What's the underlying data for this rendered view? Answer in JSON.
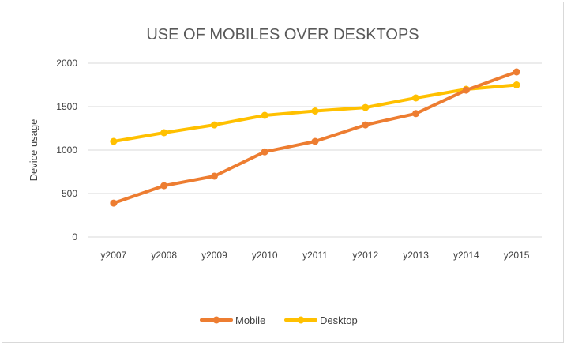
{
  "chart_data": {
    "type": "line",
    "title": "USE OF MOBILES OVER DESKTOPS",
    "xlabel": "",
    "ylabel": "Device usage",
    "categories": [
      "y2007",
      "y2008",
      "y2009",
      "y2010",
      "y2011",
      "y2012",
      "y2013",
      "y2014",
      "y2015"
    ],
    "ylim": [
      0,
      2000
    ],
    "yticks": [
      "0",
      "500",
      "1000",
      "1500",
      "2000"
    ],
    "grid": true,
    "legend_position": "bottom",
    "series": [
      {
        "name": "Mobile",
        "color": "#ED7D31",
        "values": [
          390,
          590,
          700,
          980,
          1100,
          1290,
          1420,
          1690,
          1900
        ]
      },
      {
        "name": "Desktop",
        "color": "#FFC000",
        "values": [
          1100,
          1200,
          1290,
          1400,
          1450,
          1490,
          1600,
          1700,
          1750
        ]
      }
    ]
  }
}
